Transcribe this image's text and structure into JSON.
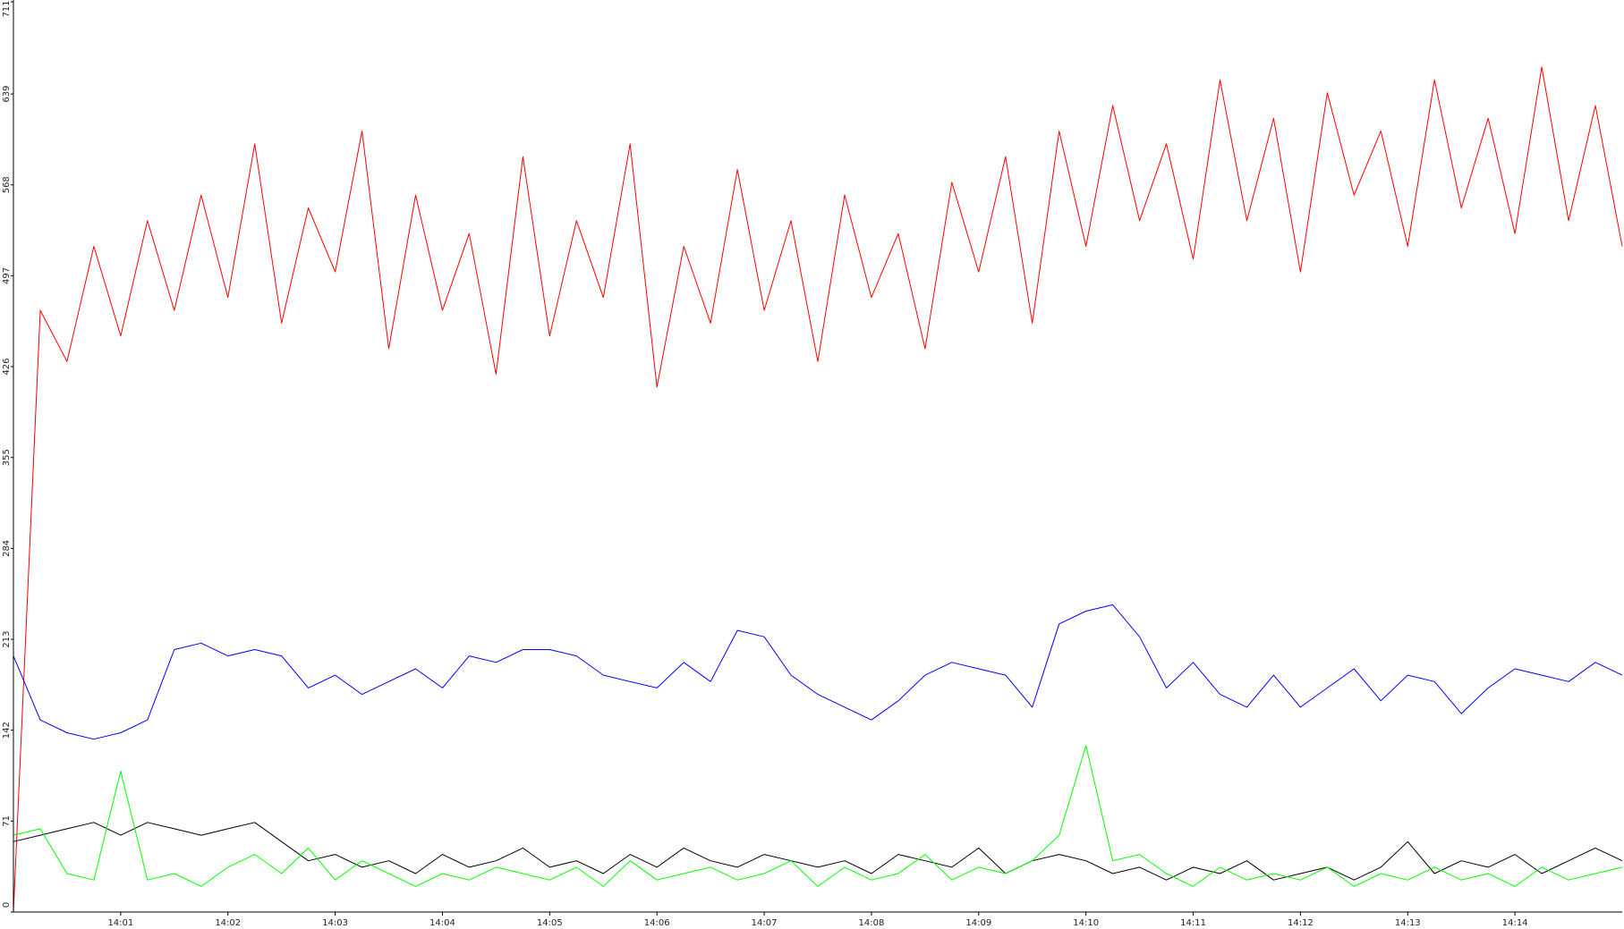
{
  "chart_data": {
    "type": "line",
    "x": [
      0,
      0.25,
      0.5,
      0.75,
      1,
      1.25,
      1.5,
      1.75,
      2,
      2.25,
      2.5,
      2.75,
      3,
      3.25,
      3.5,
      3.75,
      4,
      4.25,
      4.5,
      4.75,
      5,
      5.25,
      5.5,
      5.75,
      6,
      6.25,
      6.5,
      6.75,
      7,
      7.25,
      7.5,
      7.75,
      8,
      8.25,
      8.5,
      8.75,
      9,
      9.25,
      9.5,
      9.75,
      10,
      10.25,
      10.5,
      10.75,
      11,
      11.25,
      11.5,
      11.75,
      12,
      12.25,
      12.5,
      12.75,
      13,
      13.25,
      13.5,
      13.75,
      14,
      14.25,
      14.5,
      14.75,
      15
    ],
    "series": [
      {
        "color": "#ff0000",
        "values": [
          0,
          470,
          430,
          520,
          450,
          540,
          470,
          560,
          480,
          600,
          460,
          550,
          500,
          610,
          440,
          560,
          470,
          530,
          420,
          590,
          450,
          540,
          480,
          600,
          410,
          520,
          460,
          580,
          470,
          540,
          430,
          560,
          480,
          530,
          440,
          570,
          500,
          590,
          460,
          610,
          520,
          630,
          540,
          600,
          510,
          650,
          540,
          620,
          500,
          640,
          560,
          610,
          520,
          650,
          550,
          620,
          530,
          660,
          540,
          630,
          520
        ]
      },
      {
        "color": "#0000ff",
        "values": [
          200,
          150,
          140,
          135,
          140,
          150,
          205,
          210,
          200,
          205,
          200,
          175,
          185,
          170,
          180,
          190,
          175,
          200,
          195,
          205,
          205,
          200,
          185,
          180,
          175,
          195,
          180,
          220,
          215,
          185,
          170,
          160,
          150,
          165,
          185,
          195,
          190,
          185,
          160,
          225,
          235,
          240,
          215,
          175,
          195,
          170,
          160,
          185,
          160,
          175,
          190,
          165,
          185,
          180,
          155,
          175,
          190,
          185,
          180,
          195,
          185
        ]
      },
      {
        "color": "#000000",
        "values": [
          55,
          60,
          65,
          70,
          60,
          70,
          65,
          60,
          65,
          70,
          55,
          40,
          45,
          35,
          40,
          30,
          45,
          35,
          40,
          50,
          35,
          40,
          30,
          45,
          35,
          50,
          40,
          35,
          45,
          40,
          35,
          40,
          30,
          45,
          40,
          35,
          50,
          30,
          40,
          45,
          40,
          30,
          35,
          25,
          35,
          30,
          40,
          25,
          30,
          35,
          25,
          35,
          55,
          30,
          40,
          35,
          45,
          30,
          40,
          50,
          40
        ]
      },
      {
        "color": "#00ff00",
        "values": [
          60,
          65,
          30,
          25,
          110,
          25,
          30,
          20,
          35,
          45,
          30,
          50,
          25,
          40,
          30,
          20,
          30,
          25,
          35,
          30,
          25,
          35,
          20,
          40,
          25,
          30,
          35,
          25,
          30,
          40,
          20,
          35,
          25,
          30,
          45,
          25,
          35,
          30,
          40,
          60,
          130,
          40,
          45,
          30,
          20,
          35,
          25,
          30,
          25,
          35,
          20,
          30,
          25,
          35,
          25,
          30,
          20,
          35,
          25,
          30,
          35
        ]
      }
    ],
    "xlim": [
      0,
      15
    ],
    "xticks": [
      {
        "value": 1,
        "label": "14:01"
      },
      {
        "value": 2,
        "label": "14:02"
      },
      {
        "value": 3,
        "label": "14:03"
      },
      {
        "value": 4,
        "label": "14:04"
      },
      {
        "value": 5,
        "label": "14:05"
      },
      {
        "value": 6,
        "label": "14:06"
      },
      {
        "value": 7,
        "label": "14:07"
      },
      {
        "value": 8,
        "label": "14:08"
      },
      {
        "value": 9,
        "label": "14:09"
      },
      {
        "value": 10,
        "label": "14:10"
      },
      {
        "value": 11,
        "label": "14:11"
      },
      {
        "value": 12,
        "label": "14:12"
      },
      {
        "value": 13,
        "label": "14:13"
      },
      {
        "value": 14,
        "label": "14:14"
      }
    ],
    "ylim": [
      0,
      711
    ],
    "yticks": [
      0,
      71,
      142,
      213,
      284,
      355,
      426,
      497,
      568,
      639,
      711
    ]
  }
}
